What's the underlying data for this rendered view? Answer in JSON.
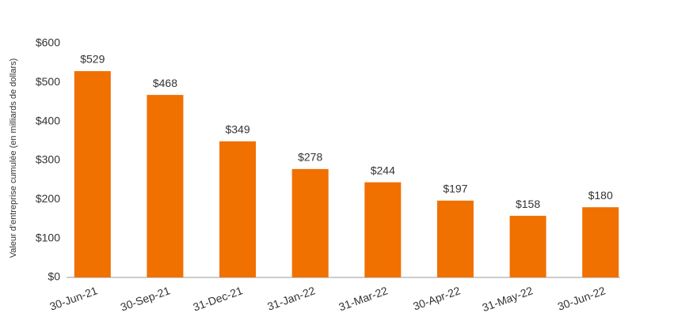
{
  "chart_data": {
    "type": "bar",
    "y_axis_label": "Valeur d'entreprise cumulée (en milliards de dollars)",
    "categories": [
      "30-Jun-21",
      "30-Sep-21",
      "31-Dec-21",
      "31-Jan-22",
      "31-Mar-22",
      "30-Apr-22",
      "31-May-22",
      "30-Jun-22"
    ],
    "values": [
      529,
      468,
      349,
      278,
      244,
      197,
      158,
      180
    ],
    "value_labels": [
      "$529",
      "$468",
      "$349",
      "$278",
      "$244",
      "$197",
      "$158",
      "$180"
    ],
    "color": "#f07000",
    "ylim": [
      0,
      600
    ],
    "yticks": [
      {
        "value": 0,
        "label": "$0"
      },
      {
        "value": 100,
        "label": "$100"
      },
      {
        "value": 200,
        "label": "$200"
      },
      {
        "value": 300,
        "label": "$300"
      },
      {
        "value": 400,
        "label": "$400"
      },
      {
        "value": 500,
        "label": "$500"
      },
      {
        "value": 600,
        "label": "$600"
      }
    ],
    "grid": false
  }
}
